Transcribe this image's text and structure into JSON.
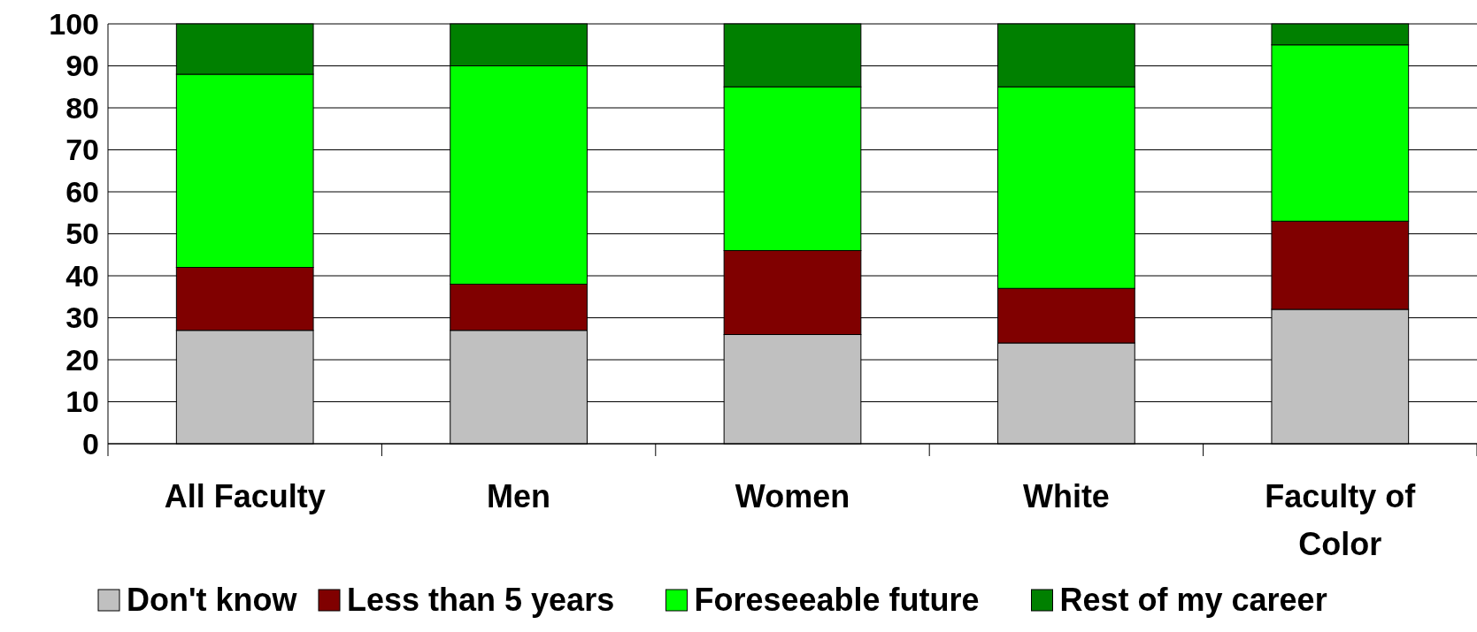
{
  "chart_data": {
    "type": "bar",
    "stacked": true,
    "categories": [
      "All Faculty",
      "Men",
      "Women",
      "White",
      "Faculty of Color"
    ],
    "series": [
      {
        "name": "Don't know",
        "color": "#c0c0c0",
        "values": [
          27,
          27,
          26,
          24,
          32
        ]
      },
      {
        "name": "Less than 5 years",
        "color": "#800000",
        "values": [
          15,
          11,
          20,
          13,
          21
        ]
      },
      {
        "name": "Foreseeable future",
        "color": "#00ff00",
        "values": [
          46,
          52,
          39,
          48,
          42
        ]
      },
      {
        "name": "Rest of my career",
        "color": "#008000",
        "values": [
          12,
          10,
          15,
          15,
          5
        ]
      }
    ],
    "ylim": [
      0,
      100
    ],
    "yticks": [
      0,
      10,
      20,
      30,
      40,
      50,
      60,
      70,
      80,
      90,
      100
    ],
    "grid": "y",
    "legend": "bottom"
  }
}
